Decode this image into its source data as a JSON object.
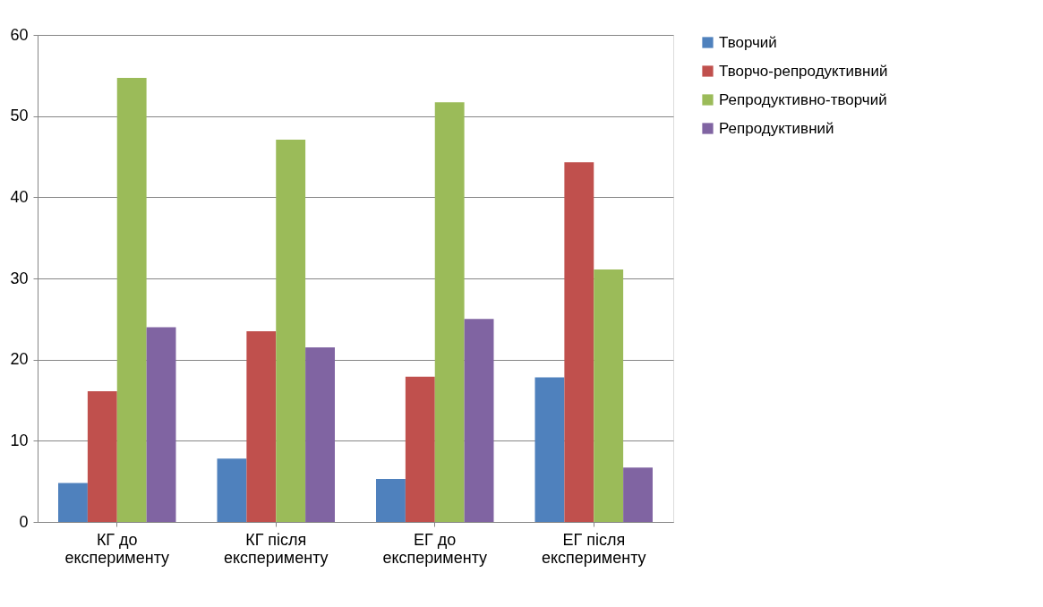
{
  "chart_data": {
    "type": "bar",
    "categories": [
      "КГ до експерименту",
      "КГ після експерименту",
      "ЕГ до експерименту",
      "ЕГ після експерименту"
    ],
    "series": [
      {
        "name": "Творчий",
        "color": "#4f81bd",
        "values": [
          4.8,
          7.8,
          5.3,
          17.8
        ]
      },
      {
        "name": "Творчо-репродуктивний",
        "color": "#c0504d",
        "values": [
          16.1,
          23.5,
          17.9,
          44.3
        ]
      },
      {
        "name": "Репродуктивно-творчий",
        "color": "#9bbb59",
        "values": [
          54.7,
          47.1,
          51.7,
          31.1
        ]
      },
      {
        "name": "Репродуктивний",
        "color": "#8064a2",
        "values": [
          24.0,
          21.5,
          25.0,
          6.7
        ]
      }
    ],
    "ylim": [
      0,
      60
    ],
    "yticks": [
      0,
      10,
      20,
      30,
      40,
      50,
      60
    ],
    "grid": "y",
    "legend": "right"
  }
}
